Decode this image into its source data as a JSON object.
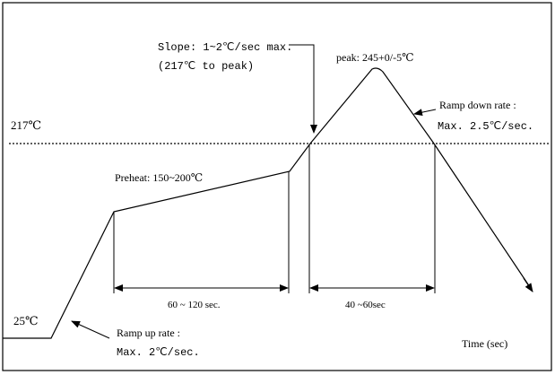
{
  "diagram": {
    "labels": {
      "t217": "217℃",
      "t25": "25℃",
      "slope_line1": "Slope: 1~2℃/sec max.",
      "slope_line2": "(217℃ to peak)",
      "peak": "peak: 245+0/-5℃",
      "ramp_down_line1": "Ramp down rate :",
      "ramp_down_line2": "Max. 2.5℃/sec.",
      "preheat": "Preheat: 150~200℃",
      "duration_preheat": "60 ~ 120 sec.",
      "duration_reflow": "40 ~60sec",
      "ramp_up_line1": "Ramp up rate :",
      "ramp_up_line2": "Max. 2℃/sec.",
      "time_axis": "Time (sec)"
    },
    "colors": {
      "line": "#000000",
      "background": "#ffffff"
    }
  }
}
